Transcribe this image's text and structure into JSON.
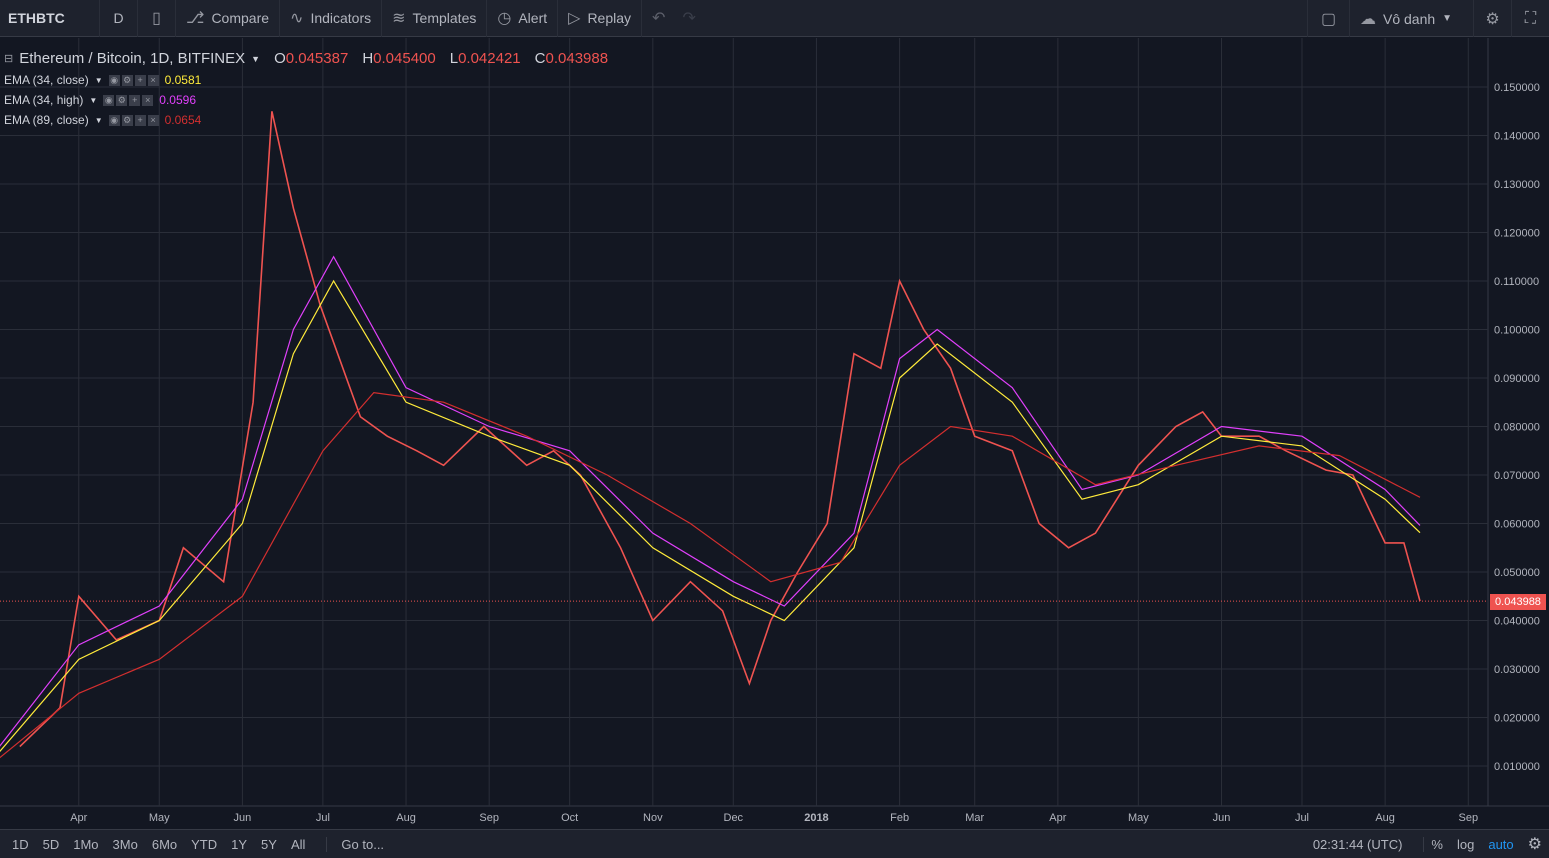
{
  "toolbar": {
    "symbol": "ETHBTC",
    "resolution": "D",
    "compare": "Compare",
    "indicators": "Indicators",
    "templates": "Templates",
    "alert": "Alert",
    "replay": "Replay",
    "layout_name": "Vô danh"
  },
  "legend": {
    "title": "Ethereum / Bitcoin, 1D, BITFINEX",
    "open_label": "O",
    "open": "0.045387",
    "high_label": "H",
    "high": "0.045400",
    "low_label": "L",
    "low": "0.042421",
    "close_label": "C",
    "close": "0.043988"
  },
  "indicators": [
    {
      "label": "EMA (34, close)",
      "value": "0.0581",
      "color": "#ffeb3b"
    },
    {
      "label": "EMA (34, high)",
      "value": "0.0596",
      "color": "#e040fb"
    },
    {
      "label": "EMA (89, close)",
      "value": "0.0654",
      "color": "#d32f2f"
    }
  ],
  "colors": {
    "up": "#26a69a",
    "down": "#ef5350",
    "background": "#131722",
    "grid": "#2a2e39"
  },
  "chart_data": {
    "type": "line",
    "title": "Ethereum / Bitcoin, 1D, BITFINEX",
    "xlabel": "",
    "ylabel": "",
    "ylim": [
      0,
      0.155
    ],
    "y_ticks": [
      "0.150000",
      "0.140000",
      "0.130000",
      "0.120000",
      "0.110000",
      "0.100000",
      "0.090000",
      "0.080000",
      "0.070000",
      "0.060000",
      "0.050000",
      "0.040000",
      "0.030000",
      "0.020000",
      "0.010000"
    ],
    "x_ticks": [
      "Apr",
      "May",
      "Jun",
      "Jul",
      "Aug",
      "Sep",
      "Oct",
      "Nov",
      "Dec",
      "2018",
      "Feb",
      "Mar",
      "Apr",
      "May",
      "Jun",
      "Jul",
      "Aug",
      "Sep"
    ],
    "series": [
      {
        "name": "Ethereum / Bitcoin",
        "color": "#ef5350",
        "x": [
          "2017-03-10",
          "2017-03-25",
          "2017-04-01",
          "2017-04-15",
          "2017-05-01",
          "2017-05-10",
          "2017-05-25",
          "2017-06-05",
          "2017-06-12",
          "2017-06-20",
          "2017-06-30",
          "2017-07-15",
          "2017-07-25",
          "2017-08-05",
          "2017-08-15",
          "2017-08-30",
          "2017-09-15",
          "2017-09-25",
          "2017-10-05",
          "2017-10-20",
          "2017-11-01",
          "2017-11-15",
          "2017-11-27",
          "2017-12-07",
          "2017-12-15",
          "2017-12-25",
          "2018-01-05",
          "2018-01-15",
          "2018-01-25",
          "2018-02-01",
          "2018-02-10",
          "2018-02-20",
          "2018-03-01",
          "2018-03-15",
          "2018-03-25",
          "2018-04-05",
          "2018-04-15",
          "2018-05-01",
          "2018-05-15",
          "2018-05-25",
          "2018-06-01",
          "2018-06-15",
          "2018-06-25",
          "2018-07-10",
          "2018-07-20",
          "2018-08-01",
          "2018-08-08",
          "2018-08-14"
        ],
        "y": [
          0.014,
          0.022,
          0.045,
          0.036,
          0.04,
          0.055,
          0.048,
          0.085,
          0.145,
          0.125,
          0.105,
          0.082,
          0.078,
          0.075,
          0.072,
          0.08,
          0.072,
          0.075,
          0.07,
          0.055,
          0.04,
          0.048,
          0.042,
          0.027,
          0.04,
          0.05,
          0.06,
          0.095,
          0.092,
          0.11,
          0.1,
          0.092,
          0.078,
          0.075,
          0.06,
          0.055,
          0.058,
          0.072,
          0.08,
          0.083,
          0.078,
          0.078,
          0.075,
          0.071,
          0.07,
          0.056,
          0.056,
          0.044
        ]
      },
      {
        "name": "EMA (34, close)",
        "color": "#ffeb3b",
        "x": [
          "2017-03-01",
          "2017-04-01",
          "2017-05-01",
          "2017-06-01",
          "2017-06-20",
          "2017-07-05",
          "2017-08-01",
          "2017-09-01",
          "2017-10-01",
          "2017-11-01",
          "2017-12-01",
          "2017-12-20",
          "2018-01-15",
          "2018-02-01",
          "2018-02-15",
          "2018-03-15",
          "2018-04-10",
          "2018-05-01",
          "2018-06-01",
          "2018-07-01",
          "2018-08-01",
          "2018-08-14"
        ],
        "y": [
          0.012,
          0.032,
          0.04,
          0.06,
          0.095,
          0.11,
          0.085,
          0.078,
          0.072,
          0.055,
          0.045,
          0.04,
          0.055,
          0.09,
          0.097,
          0.085,
          0.065,
          0.068,
          0.078,
          0.076,
          0.065,
          0.0581
        ]
      },
      {
        "name": "EMA (34, high)",
        "color": "#e040fb",
        "x": [
          "2017-03-01",
          "2017-04-01",
          "2017-05-01",
          "2017-06-01",
          "2017-06-20",
          "2017-07-05",
          "2017-08-01",
          "2017-09-01",
          "2017-10-01",
          "2017-11-01",
          "2017-12-01",
          "2017-12-20",
          "2018-01-15",
          "2018-02-01",
          "2018-02-15",
          "2018-03-15",
          "2018-04-10",
          "2018-05-01",
          "2018-06-01",
          "2018-07-01",
          "2018-08-01",
          "2018-08-14"
        ],
        "y": [
          0.013,
          0.035,
          0.043,
          0.065,
          0.1,
          0.115,
          0.088,
          0.08,
          0.075,
          0.058,
          0.048,
          0.043,
          0.058,
          0.094,
          0.1,
          0.088,
          0.067,
          0.07,
          0.08,
          0.078,
          0.067,
          0.0596
        ]
      },
      {
        "name": "EMA (89, close)",
        "color": "#d32f2f",
        "x": [
          "2017-03-01",
          "2017-04-01",
          "2017-05-01",
          "2017-06-01",
          "2017-07-01",
          "2017-07-20",
          "2017-08-15",
          "2017-09-15",
          "2017-10-15",
          "2017-11-15",
          "2017-12-15",
          "2018-01-10",
          "2018-02-01",
          "2018-02-20",
          "2018-03-15",
          "2018-04-15",
          "2018-05-15",
          "2018-06-15",
          "2018-07-15",
          "2018-08-14"
        ],
        "y": [
          0.011,
          0.025,
          0.032,
          0.045,
          0.075,
          0.087,
          0.085,
          0.078,
          0.07,
          0.06,
          0.048,
          0.052,
          0.072,
          0.08,
          0.078,
          0.068,
          0.072,
          0.076,
          0.074,
          0.0654
        ]
      }
    ],
    "last_price": "0.043988",
    "grid": true
  },
  "bottom": {
    "ranges": [
      "1D",
      "5D",
      "1Mo",
      "3Mo",
      "6Mo",
      "YTD",
      "1Y",
      "5Y",
      "All"
    ],
    "goto": "Go to...",
    "clock": "02:31:44 (UTC)",
    "pct": "%",
    "log": "log",
    "auto": "auto"
  }
}
